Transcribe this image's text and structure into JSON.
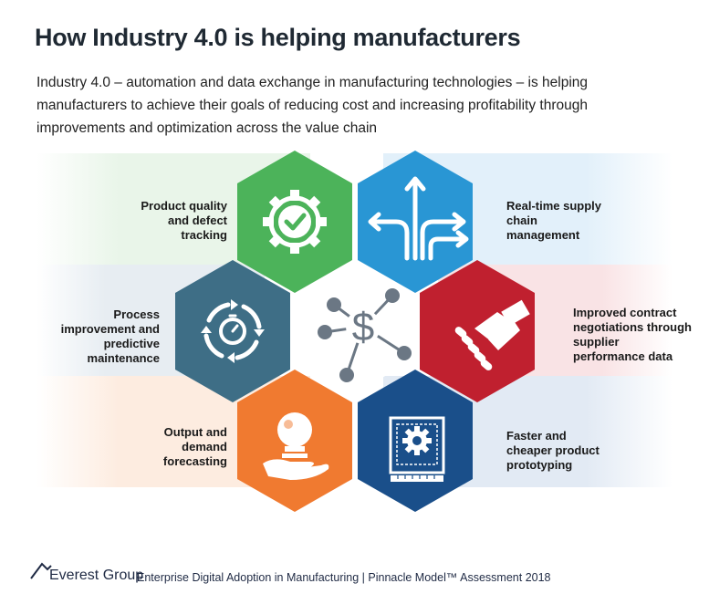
{
  "title": "How Industry 4.0 is helping manufacturers",
  "subtitle": "Industry 4.0 – automation and data exchange in manufacturing technologies – is helping manufacturers to achieve their goals of reducing cost and increasing profitability through improvements and optimization across the value chain",
  "benefits": [
    {
      "label": "Product quality and defect tracking",
      "color": "#4cb35a",
      "icon": "gear-check-icon"
    },
    {
      "label": "Real-time supply chain management",
      "color": "#2996d4",
      "icon": "branching-arrows-icon"
    },
    {
      "label": "Process improvement and predictive maintenance",
      "color": "#3e6e86",
      "icon": "stopwatch-cycle-icon"
    },
    {
      "label": "Improved contract negotiations through supplier performance data",
      "color": "#c0202f",
      "icon": "handshake-icon"
    },
    {
      "label": "Output and demand forecasting",
      "color": "#f07a30",
      "icon": "crystal-ball-hand-icon"
    },
    {
      "label": "Faster and cheaper product prototyping",
      "color": "#1a4f8a",
      "icon": "blueprint-gear-icon"
    }
  ],
  "center": {
    "icon": "dollar-network-icon",
    "color": "#6b7784"
  },
  "footer": {
    "brand": "Everest Group",
    "text": "Enterprise Digital Adoption in Manufacturing | Pinnacle Model™ Assessment 2018"
  }
}
